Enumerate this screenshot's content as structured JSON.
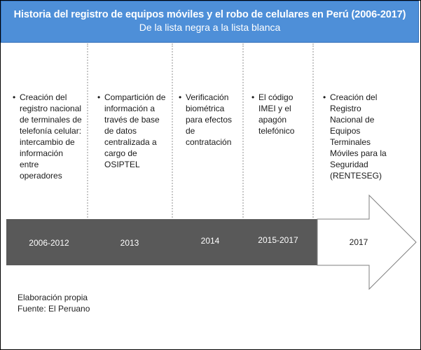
{
  "header": {
    "title": "Historia del registro de equipos móviles y el robo de celulares en Perú (2006-2017)",
    "subtitle": "De la lista negra a la lista blanca"
  },
  "bullet_char": "•",
  "columns": [
    {
      "year": "2006-2012",
      "text": "Creación del registro nacional de terminales de telefonía celular: intercambio de información entre operadores"
    },
    {
      "year": "2013",
      "text": "Compartición de información a través de base de datos centralizada a cargo de OSIPTEL"
    },
    {
      "year": "2014",
      "text": "Verificación biométrica para efectos de contratación"
    },
    {
      "year": "2015-2017",
      "text": "El código IMEI y el apagón telefónico"
    },
    {
      "year": "2017",
      "text": "Creación del Registro Nacional de Equipos Terminales Móviles para la Seguridad (RENTESEG)"
    }
  ],
  "footer": {
    "line1": "Elaboración propia",
    "line2": "Fuente: El Peruano"
  },
  "colors": {
    "header_bg": "#4e8fd8",
    "bar_dark": "#595959",
    "bar_light": "#ffffff"
  }
}
